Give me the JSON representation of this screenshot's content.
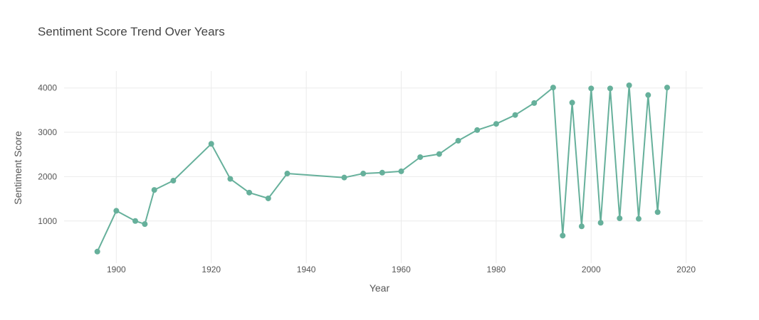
{
  "chart_data": {
    "type": "line",
    "title": "Sentiment Score Trend Over Years",
    "xlabel": "Year",
    "ylabel": "Sentiment Score",
    "xlim": [
      1889,
      2023.5
    ],
    "ylim": [
      50,
      4380
    ],
    "x_ticks": [
      1900,
      1920,
      1940,
      1960,
      1980,
      2000,
      2020
    ],
    "y_ticks": [
      1000,
      2000,
      3000,
      4000
    ],
    "grid": true,
    "line_color": "#66b09b",
    "series": [
      {
        "x": [
          1896,
          1900,
          1904,
          1906,
          1908,
          1912,
          1920,
          1924,
          1928,
          1932,
          1936,
          1948,
          1952,
          1956,
          1960,
          1964,
          1968,
          1972,
          1976,
          1980,
          1984,
          1988,
          1992,
          1994,
          1996,
          1998,
          2000,
          2002,
          2004,
          2006,
          2008,
          2010,
          2012,
          2014,
          2016
        ],
        "y": [
          310,
          1230,
          1000,
          930,
          1700,
          1910,
          2740,
          1950,
          1640,
          1510,
          2070,
          1980,
          2070,
          2090,
          2120,
          2440,
          2510,
          2810,
          3050,
          3190,
          3390,
          3660,
          4010,
          670,
          3670,
          880,
          3990,
          960,
          3990,
          1060,
          4060,
          1050,
          3840,
          1200,
          4010
        ]
      }
    ]
  }
}
